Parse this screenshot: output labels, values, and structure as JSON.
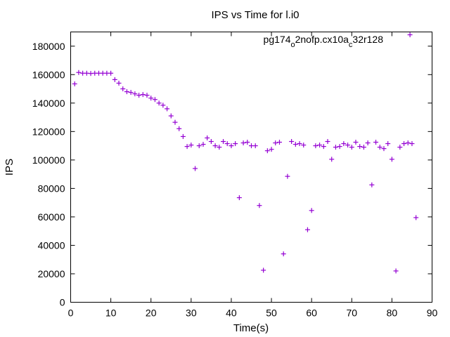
{
  "chart_data": {
    "type": "scatter",
    "title": "IPS vs Time for l.i0",
    "xlabel": "Time(s)",
    "ylabel": "IPS",
    "xlim": [
      0,
      90
    ],
    "ylim": [
      0,
      190000
    ],
    "xticks": [
      0,
      10,
      20,
      30,
      40,
      50,
      60,
      70,
      80,
      90
    ],
    "yticks": [
      0,
      20000,
      40000,
      60000,
      80000,
      100000,
      120000,
      140000,
      160000,
      180000
    ],
    "grid": false,
    "legend_position": "top-right",
    "series": [
      {
        "name_parts": [
          "pg174",
          "o",
          "2nofp.cx10a",
          "c",
          "32r128"
        ],
        "color": "#9400d3",
        "marker": "plus",
        "x": [
          1,
          2,
          3,
          4,
          5,
          6,
          7,
          8,
          9,
          10,
          11,
          12,
          13,
          14,
          15,
          16,
          17,
          18,
          19,
          20,
          21,
          22,
          23,
          24,
          25,
          26,
          27,
          28,
          29,
          30,
          31,
          32,
          33,
          34,
          35,
          36,
          37,
          38,
          39,
          40,
          41,
          42,
          43,
          44,
          45,
          46,
          47,
          48,
          49,
          50,
          51,
          52,
          53,
          54,
          55,
          56,
          57,
          58,
          59,
          60,
          61,
          62,
          63,
          64,
          65,
          66,
          67,
          68,
          69,
          70,
          71,
          72,
          73,
          74,
          75,
          76,
          77,
          78,
          79,
          80,
          81,
          82,
          83,
          84,
          85,
          86
        ],
        "y": [
          153500,
          161500,
          161000,
          161000,
          160800,
          161000,
          161000,
          161000,
          161000,
          161000,
          156500,
          154000,
          150000,
          148000,
          147500,
          146500,
          145500,
          146000,
          145500,
          143500,
          142500,
          140000,
          138500,
          136000,
          131000,
          126500,
          122000,
          116500,
          109500,
          110500,
          94000,
          110000,
          111000,
          115500,
          113000,
          110000,
          109000,
          113000,
          111500,
          110000,
          111500,
          73500,
          112000,
          112500,
          110000,
          110000,
          68000,
          22500,
          106500,
          107500,
          112000,
          112500,
          34000,
          88500,
          113000,
          111000,
          111500,
          110500,
          51000,
          64500,
          110000,
          110500,
          109500,
          113000,
          100500,
          109000,
          109500,
          111500,
          110500,
          109000,
          112500,
          109500,
          109000,
          112000,
          82500,
          112500,
          109000,
          108000,
          111500,
          100500,
          22000,
          109000,
          111500,
          112000,
          111500,
          59500
        ]
      }
    ],
    "legend_sample": {
      "x": 84.5,
      "y": 188000
    }
  }
}
